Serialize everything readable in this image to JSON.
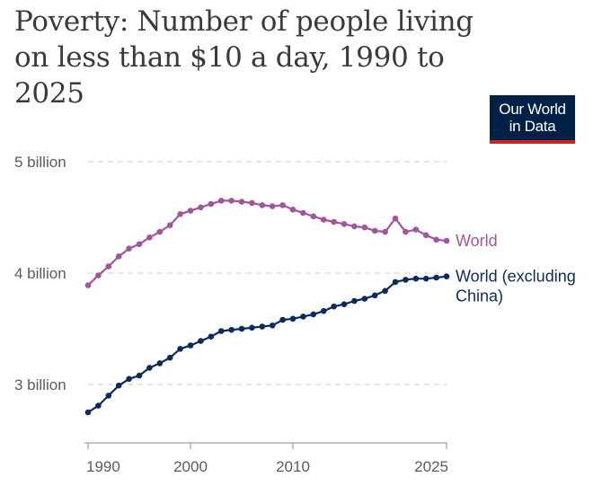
{
  "title": "Poverty: Number of people living on less than $10 a day, 1990 to 2025",
  "logo": {
    "line1": "Our World",
    "line2": "in Data"
  },
  "colors": {
    "world": "#a2559c",
    "excluding_china": "#0d2a5e",
    "grid": "#d8d8d8",
    "axis": "#888888"
  },
  "chart_data": {
    "type": "line",
    "title": "Poverty: Number of people living on less than $10 a day, 1990 to 2025",
    "xlabel": "",
    "ylabel": "",
    "xlim": [
      1990,
      2025
    ],
    "ylim": [
      2.5,
      5.1
    ],
    "y_ticks": [
      {
        "value": 3,
        "label": "3 billion"
      },
      {
        "value": 4,
        "label": "4 billion"
      },
      {
        "value": 5,
        "label": "5 billion"
      }
    ],
    "x_ticks": [
      {
        "value": 1990,
        "label": "1990"
      },
      {
        "value": 2000,
        "label": "2000"
      },
      {
        "value": 2010,
        "label": "2010"
      },
      {
        "value": 2025,
        "label": "2025"
      }
    ],
    "grid": "horizontal dashed",
    "x": [
      1990,
      1991,
      1992,
      1993,
      1994,
      1995,
      1996,
      1997,
      1998,
      1999,
      2000,
      2001,
      2002,
      2003,
      2004,
      2005,
      2006,
      2007,
      2008,
      2009,
      2010,
      2011,
      2012,
      2013,
      2014,
      2015,
      2016,
      2017,
      2018,
      2019,
      2020,
      2021,
      2022,
      2023,
      2024,
      2025
    ],
    "series": [
      {
        "name": "World",
        "color": "#a2559c",
        "values": [
          3.89,
          3.98,
          4.06,
          4.15,
          4.22,
          4.26,
          4.32,
          4.37,
          4.43,
          4.53,
          4.56,
          4.59,
          4.62,
          4.65,
          4.65,
          4.64,
          4.63,
          4.61,
          4.6,
          4.61,
          4.57,
          4.54,
          4.51,
          4.48,
          4.46,
          4.44,
          4.42,
          4.41,
          4.38,
          4.37,
          4.49,
          4.37,
          4.39,
          4.34,
          4.3,
          4.29
        ]
      },
      {
        "name": "World (excluding China)",
        "label_lines": [
          "World (excluding",
          "China)"
        ],
        "color": "#0d2a5e",
        "values": [
          2.75,
          2.81,
          2.9,
          2.99,
          3.05,
          3.08,
          3.15,
          3.19,
          3.24,
          3.32,
          3.35,
          3.39,
          3.43,
          3.48,
          3.49,
          3.5,
          3.51,
          3.52,
          3.53,
          3.58,
          3.59,
          3.61,
          3.63,
          3.66,
          3.7,
          3.72,
          3.75,
          3.77,
          3.8,
          3.84,
          3.92,
          3.94,
          3.95,
          3.95,
          3.96,
          3.97
        ]
      }
    ]
  }
}
